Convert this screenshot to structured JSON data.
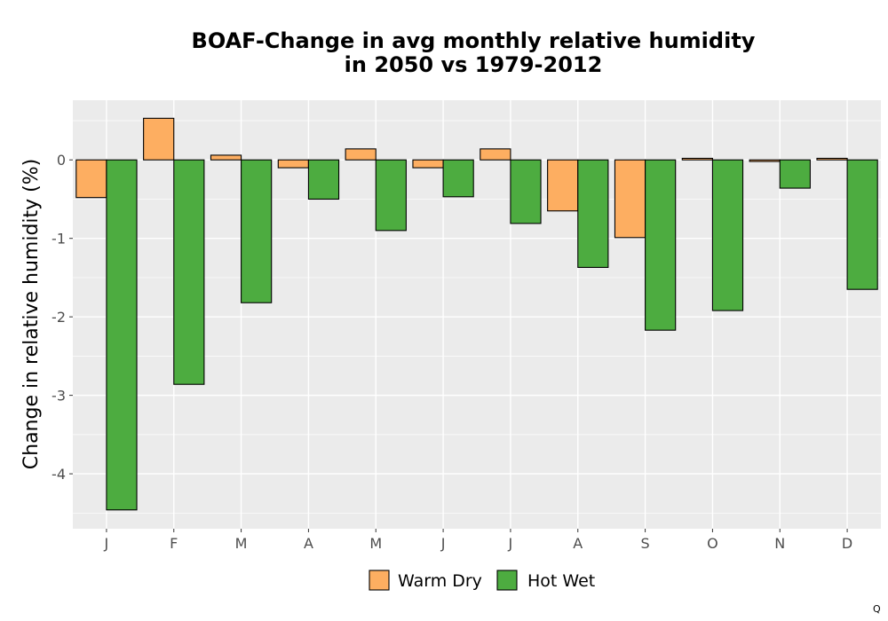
{
  "chart_data": {
    "type": "bar",
    "title_line1": "BOAF-Change in avg monthly relative humidity",
    "title_line2": "in 2050 vs 1979-2012",
    "xlabel": "",
    "ylabel": "Change in relative humidity (%)",
    "categories": [
      "J",
      "F",
      "M",
      "A",
      "M",
      "J",
      "J",
      "A",
      "S",
      "O",
      "N",
      "D"
    ],
    "series": [
      {
        "name": "Warm Dry",
        "color": "#FDAE61",
        "values": [
          -0.48,
          0.53,
          0.06,
          -0.1,
          0.14,
          -0.1,
          0.14,
          -0.65,
          -0.99,
          0.02,
          -0.02,
          0.02
        ]
      },
      {
        "name": "Hot Wet",
        "color": "#4DAC40",
        "values": [
          -4.46,
          -2.86,
          -1.82,
          -0.5,
          -0.9,
          -0.47,
          -0.81,
          -1.37,
          -2.17,
          -1.92,
          -0.36,
          -1.65
        ]
      }
    ],
    "ylim": [
      -4.7,
      0.76
    ],
    "yticks": [
      0,
      -1,
      -2,
      -3,
      -4
    ],
    "ytick_labels": [
      "0",
      "-1",
      "-2",
      "-3",
      "-4"
    ],
    "grid": true,
    "legend_position": "bottom"
  },
  "corner_mark": "Q"
}
